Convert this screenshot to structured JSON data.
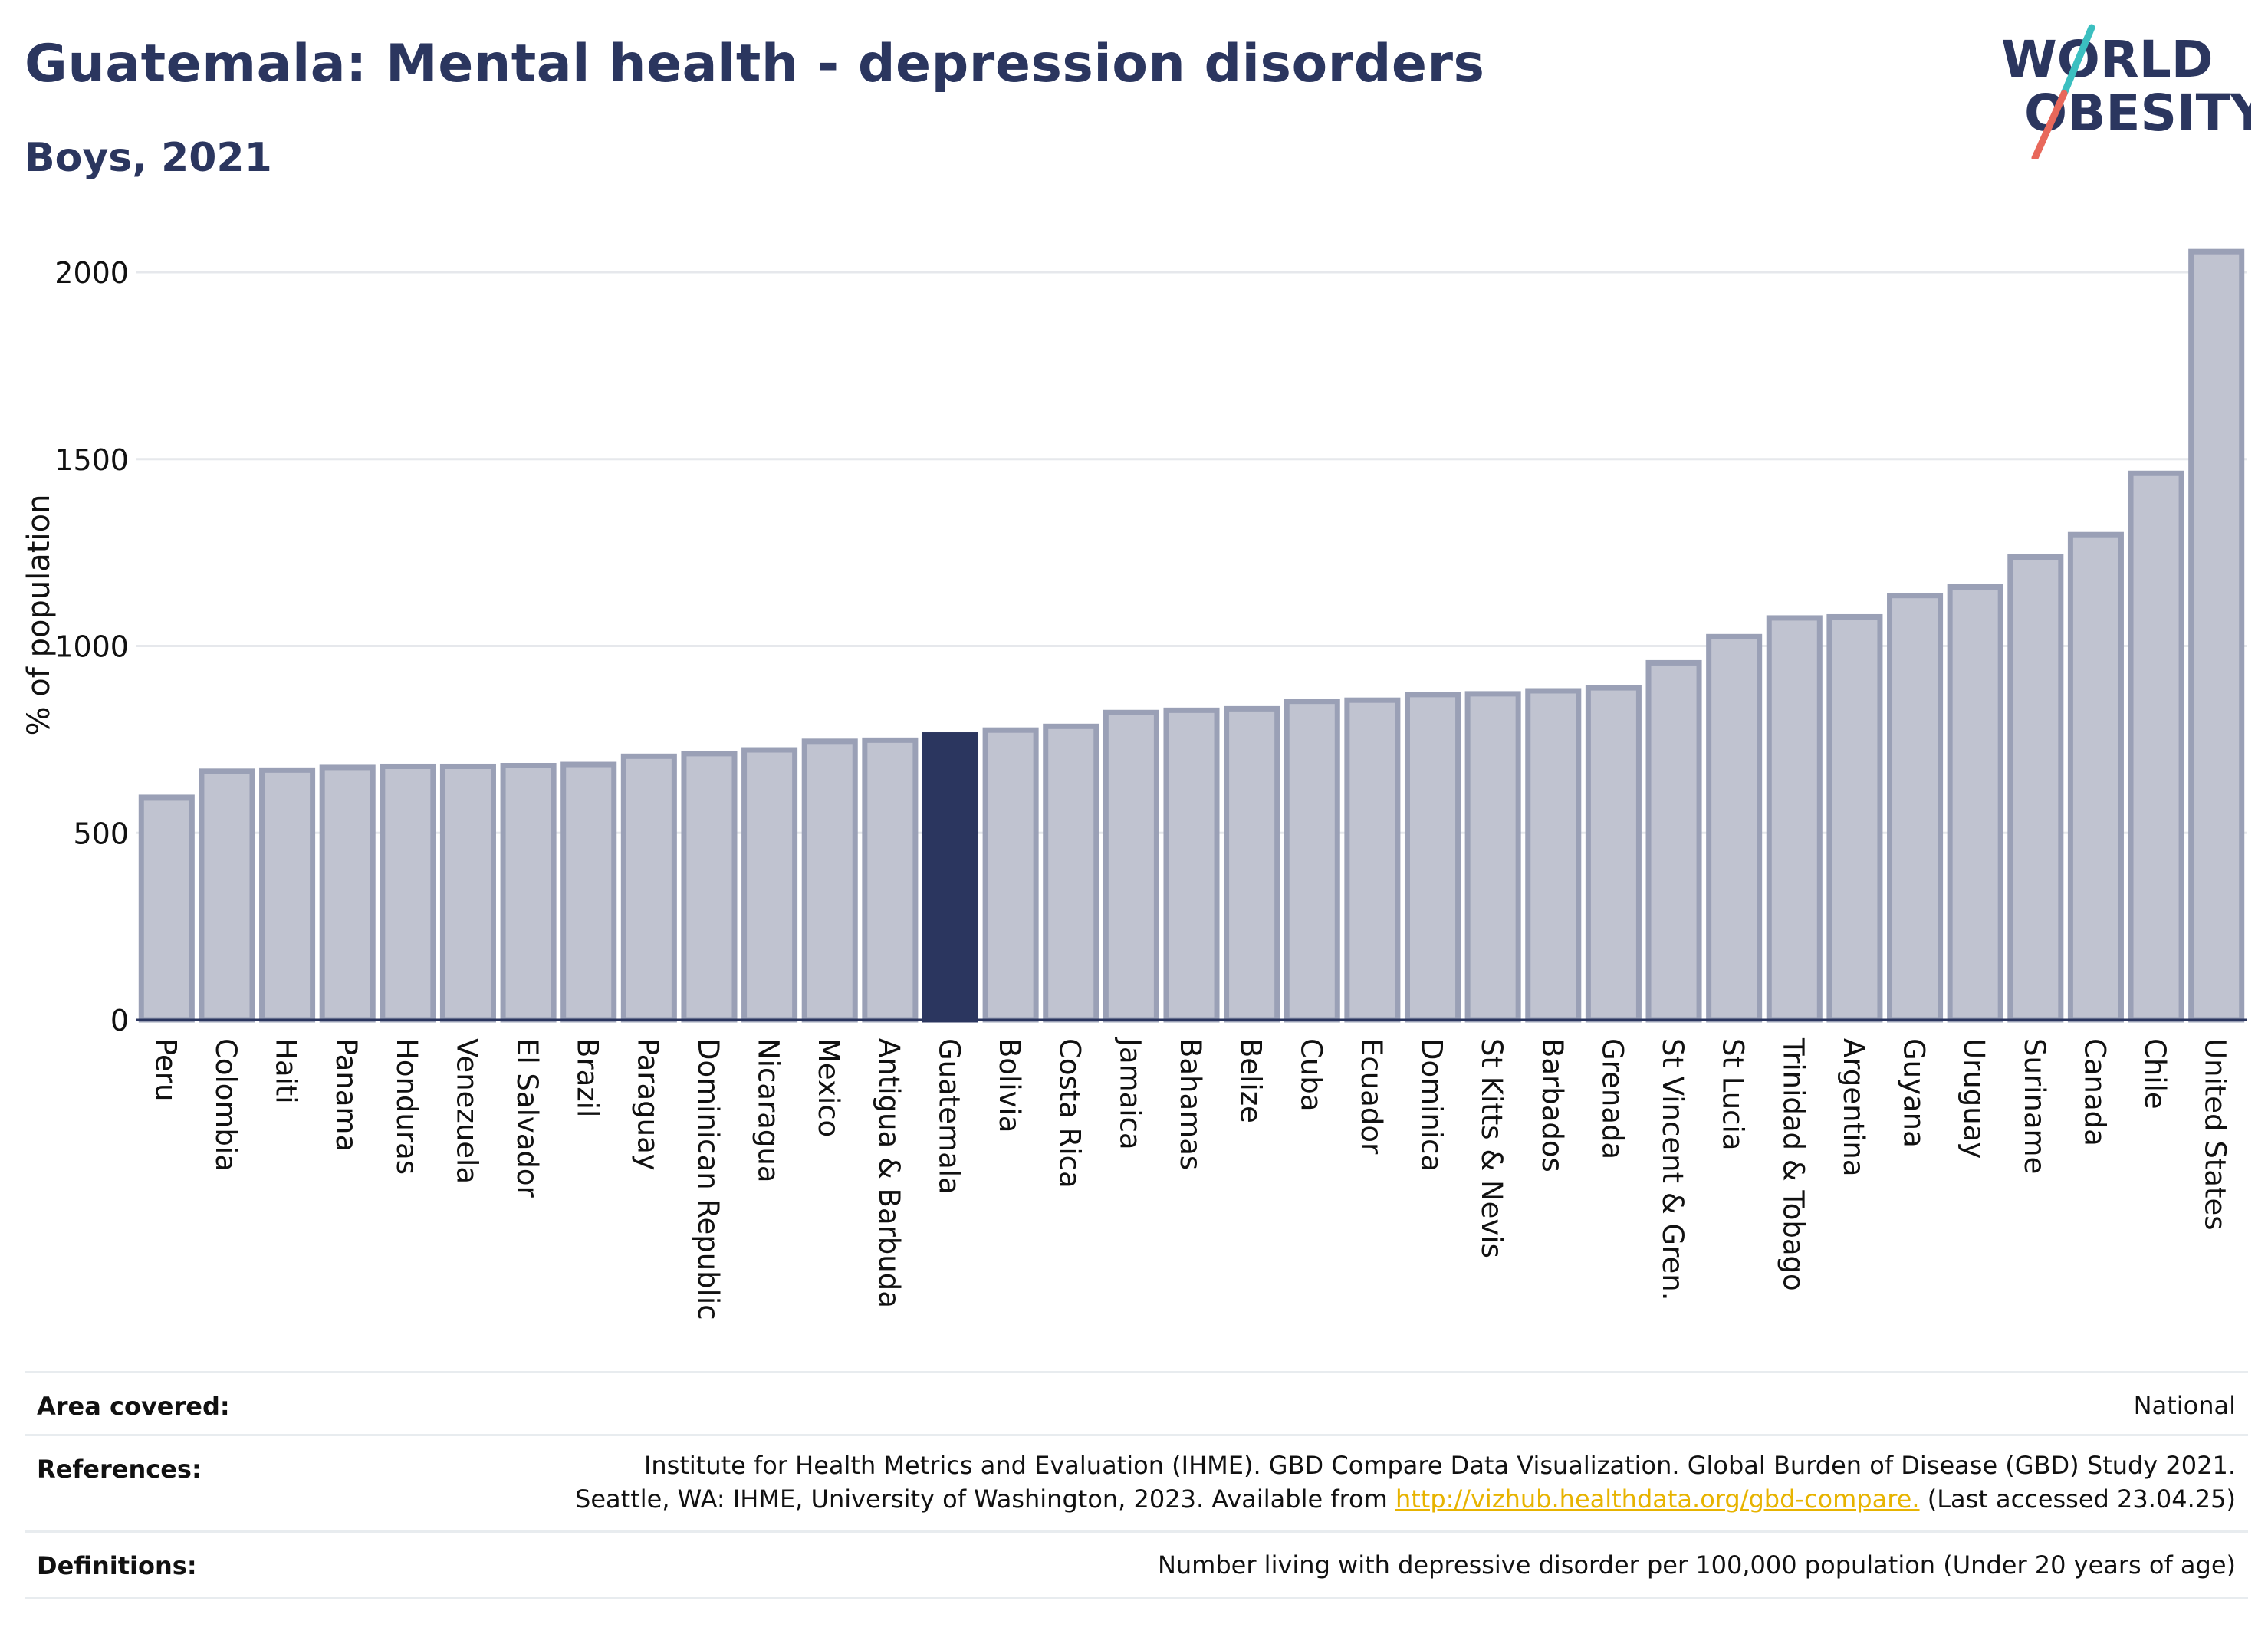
{
  "header": {
    "title": "Guatemala: Mental health - depression disorders",
    "subtitle": "Boys, 2021"
  },
  "logo": {
    "line1": "WORLD",
    "line2": "OBESITY",
    "accent_teal": "#3bbfc0",
    "accent_coral": "#e8685b"
  },
  "chart_data": {
    "type": "bar",
    "title": "Guatemala: Mental health - depression disorders",
    "subtitle": "Boys, 2021",
    "xlabel": "",
    "ylabel": "% of population",
    "ylim": [
      0,
      2100
    ],
    "yticks": [
      0,
      500,
      1000,
      1500,
      2000
    ],
    "grid": true,
    "highlight": "Guatemala",
    "colors": {
      "default": "#c0c3d0",
      "default_border": "#9aa0b6",
      "highlight": "#2b365f"
    },
    "categories": [
      "Peru",
      "Colombia",
      "Haiti",
      "Panama",
      "Honduras",
      "Venezuela",
      "El Salvador",
      "Brazil",
      "Paraguay",
      "Dominican Republic",
      "Nicaragua",
      "Mexico",
      "Antigua & Barbuda",
      "Guatemala",
      "Bolivia",
      "Costa Rica",
      "Jamaica",
      "Bahamas",
      "Belize",
      "Cuba",
      "Ecuador",
      "Dominica",
      "St Kitts & Nevis",
      "Barbados",
      "Grenada",
      "St Vincent & Gren.",
      "St Lucia",
      "Trinidad & Tobago",
      "Argentina",
      "Guyana",
      "Uruguay",
      "Suriname",
      "Canada",
      "Chile",
      "United States"
    ],
    "values": [
      595,
      665,
      668,
      675,
      678,
      678,
      680,
      683,
      705,
      712,
      722,
      745,
      748,
      762,
      775,
      785,
      822,
      828,
      832,
      852,
      855,
      870,
      872,
      880,
      888,
      955,
      1025,
      1075,
      1078,
      1135,
      1158,
      1238,
      1298,
      1462,
      2055
    ]
  },
  "footer": {
    "area_label": "Area covered:",
    "area_value": "National",
    "references_label": "References:",
    "references_line1": "Institute for Health Metrics and Evaluation (IHME). GBD Compare Data Visualization. Global Burden of Disease (GBD) Study 2021.",
    "references_line2_pre": "Seattle, WA: IHME, University of Washington, 2023. Available from ",
    "references_link": "http://vizhub.healthdata.org/gbd-compare.",
    "references_line2_post": " (Last accessed 23.04.25)",
    "definitions_label": "Definitions:",
    "definitions_value": "Number living with depressive disorder per 100,000 population (Under 20 years of age)"
  }
}
